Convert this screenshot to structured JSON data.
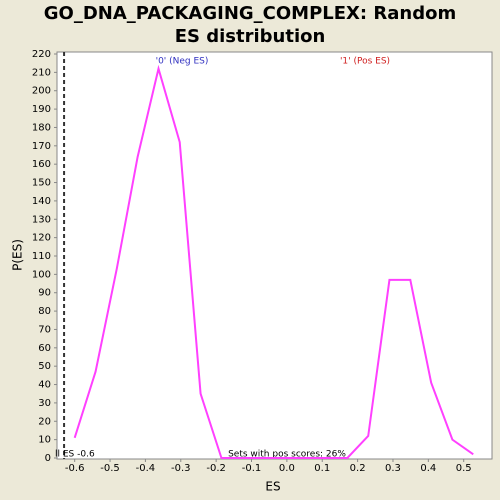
{
  "chart_data": {
    "type": "line",
    "title": "GO_DNA_PACKAGING_COMPLEX: Random ES distribution",
    "xlabel": "ES",
    "ylabel": "P(ES)",
    "x": [
      -0.6,
      -0.541,
      -0.481,
      -0.422,
      -0.363,
      -0.303,
      -0.244,
      -0.185,
      -0.125,
      -0.066,
      -0.007,
      0.053,
      0.112,
      0.171,
      0.23,
      0.29,
      0.349,
      0.408,
      0.468,
      0.527
    ],
    "values": [
      11,
      47,
      103,
      164,
      212,
      172,
      35,
      0,
      0,
      0,
      0,
      0,
      0,
      0,
      12,
      97,
      97,
      41,
      10,
      2
    ],
    "color": "#ff40ff",
    "xlim": [
      -0.65,
      0.58
    ],
    "xticks": [
      -0.6,
      -0.5,
      -0.4,
      -0.3,
      -0.2,
      -0.1,
      {
        "value": 0,
        "label": "0.0"
      },
      0.1,
      0.2,
      0.3,
      0.4,
      0.5
    ],
    "ylim": [
      0,
      220
    ],
    "yticks": [
      0,
      10,
      20,
      30,
      40,
      50,
      60,
      70,
      80,
      90,
      100,
      110,
      120,
      130,
      140,
      150,
      160,
      170,
      180,
      190,
      200,
      210,
      220
    ],
    "grid": false,
    "es_line": {
      "value": -0.63,
      "label": "ll ES -0.6"
    },
    "neg_label": {
      "text": "'0' (Neg ES)",
      "color": "#3030c0"
    },
    "pos_label": {
      "text": "'1' (Pos ES)",
      "color": "#d02020"
    },
    "footnote": "Sets with pos scores: 26%"
  }
}
